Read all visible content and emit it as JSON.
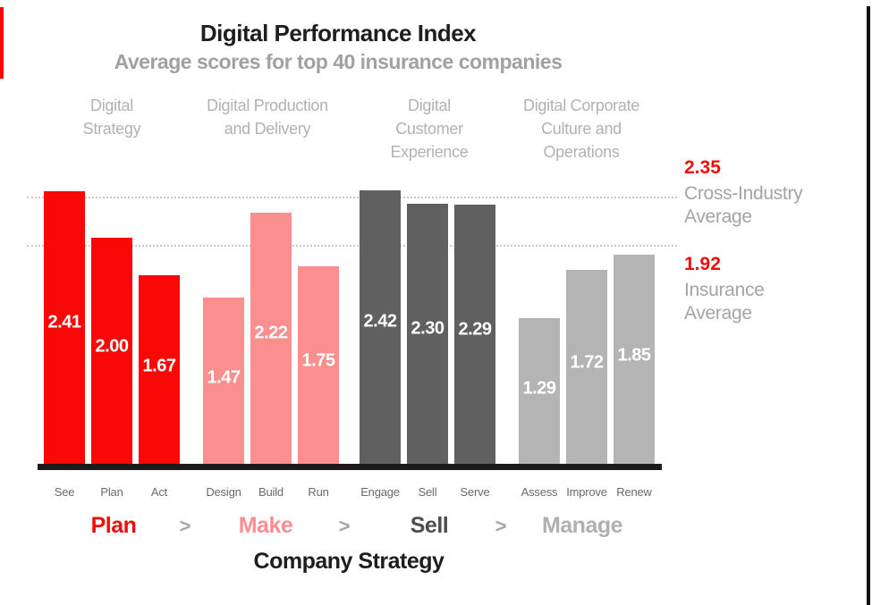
{
  "page": {
    "title": "Digital Performance Index",
    "subtitle": "Average scores for top 40 insurance companies",
    "xlabel": "Company Strategy"
  },
  "colors": {
    "red": "#fa0808",
    "pink": "#fb8e8e",
    "dark_gray": "#616060",
    "light_gray": "#b5b4b4",
    "strategy_sell_gray": "#4f4c4d",
    "strategy_manage_gray": "#b1afaf",
    "title_black": "#1f1d1d",
    "subtitle_gray": "#a2a0a1",
    "header_gray": "#b3b1b1",
    "tick_gray": "#6b6969",
    "dotted_line_gray": "#c9c7c7",
    "baseline_black": "#1c1a1a",
    "annotation_value_red": "#f40b0b",
    "annotation_label_gray": "#a5a3a4",
    "bar_value_white": "#ffffff"
  },
  "chart_data": {
    "type": "bar",
    "title": "Digital Performance Index",
    "subtitle": "Average scores for top 40 insurance companies",
    "xlabel": "Company Strategy",
    "ylabel": "",
    "ylim": [
      0,
      2.6
    ],
    "grid": "off",
    "legend": "none",
    "reference_lines": [
      {
        "value": 2.35,
        "value_label": "2.35",
        "label": "Cross-Industry\nAverage",
        "style": "dotted"
      },
      {
        "value": 1.92,
        "value_label": "1.92",
        "label": "Insurance\nAverage",
        "style": "dotted"
      }
    ],
    "groups": [
      {
        "header": "Digital\nStrategy",
        "strategy": "Plan",
        "color": "#fa0808",
        "categories": [
          "See",
          "Plan",
          "Act"
        ],
        "values": [
          2.41,
          2.0,
          1.67
        ],
        "value_labels": [
          "2.41",
          "2.00",
          "1.67"
        ]
      },
      {
        "header": "Digital Production\nand Delivery",
        "strategy": "Make",
        "color": "#fb8e8e",
        "categories": [
          "Design",
          "Build",
          "Run"
        ],
        "values": [
          1.47,
          2.22,
          1.75
        ],
        "value_labels": [
          "1.47",
          "2.22",
          "1.75"
        ]
      },
      {
        "header": "Digital\nCustomer\nExperience",
        "strategy": "Sell",
        "color": "#616060",
        "categories": [
          "Engage",
          "Sell",
          "Serve"
        ],
        "values": [
          2.42,
          2.3,
          2.29
        ],
        "value_labels": [
          "2.42",
          "2.30",
          "2.29"
        ]
      },
      {
        "header": "Digital Corporate\nCulture and\nOperations",
        "strategy": "Manage",
        "color": "#b5b4b4",
        "categories": [
          "Assess",
          "Improve",
          "Renew"
        ],
        "values": [
          1.29,
          1.72,
          1.85
        ],
        "value_labels": [
          "1.29",
          "1.72",
          "1.85"
        ]
      }
    ]
  },
  "strategy_row": {
    "separator": ">",
    "items": [
      {
        "label": "Plan",
        "color": "#f40b0b"
      },
      {
        "label": "Make",
        "color": "#fb8e8e"
      },
      {
        "label": "Sell",
        "color": "#4f4c4d"
      },
      {
        "label": "Manage",
        "color": "#b1afaf"
      }
    ]
  }
}
